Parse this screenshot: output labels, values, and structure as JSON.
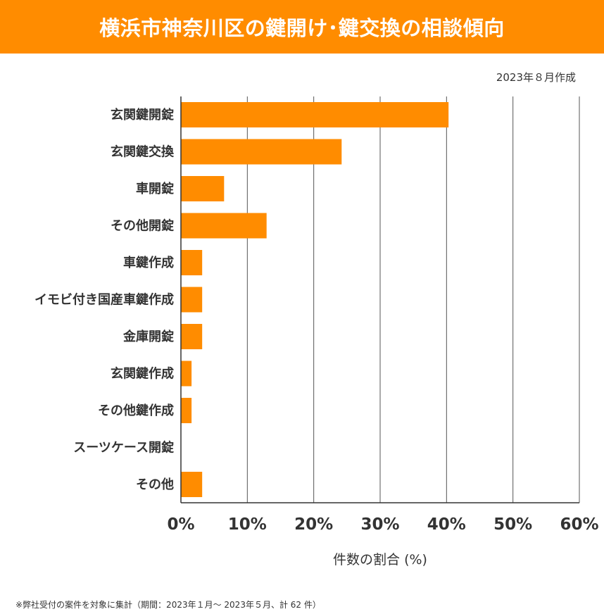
{
  "header": {
    "title": "横浜市神奈川区の鍵開け･鍵交換の相談傾向"
  },
  "date_label": "2023年８月作成",
  "footnote": "※弊社受付の案件を対象に集計（期間：2023年１月～ 2023年５月、計 62 件）",
  "chart_data": {
    "type": "bar",
    "orientation": "horizontal",
    "title": "横浜市神奈川区の鍵開け･鍵交換の相談傾向",
    "xlabel": "件数の割合 (%)",
    "ylabel": "",
    "categories": [
      "玄関鍵開錠",
      "玄関鍵交換",
      "車開錠",
      "その他開錠",
      "車鍵作成",
      "イモビ付き国産車鍵作成",
      "金庫開錠",
      "玄関鍵作成",
      "その他鍵作成",
      "スーツケース開錠",
      "その他"
    ],
    "values": [
      40.3,
      24.2,
      6.5,
      12.9,
      3.2,
      3.2,
      3.2,
      1.6,
      1.6,
      0,
      3.2
    ],
    "xlim": [
      0,
      60
    ],
    "xticks": [
      0,
      10,
      20,
      30,
      40,
      50,
      60
    ],
    "xtick_labels": [
      "0%",
      "10%",
      "20%",
      "30%",
      "40%",
      "50%",
      "60%"
    ],
    "grid": true,
    "bar_color": "#ff8c00"
  }
}
